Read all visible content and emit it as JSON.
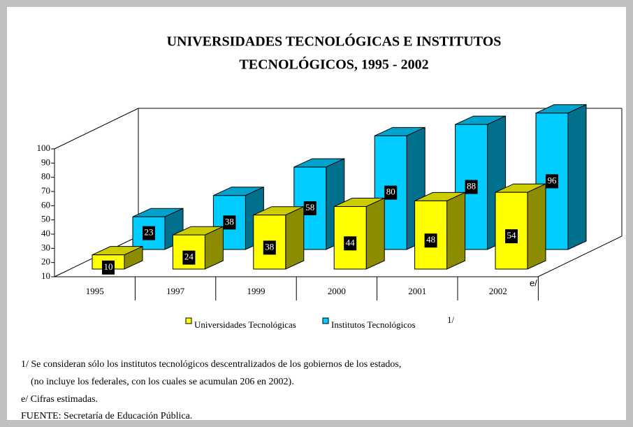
{
  "chart_data": {
    "type": "bar3d",
    "title": [
      "UNIVERSIDADES TECNOLÓGICAS E INSTITUTOS",
      "TECNOLÓGICOS, 1995 - 2002"
    ],
    "categories": [
      "1995",
      "1997",
      "1999",
      "2000",
      "2001",
      "2002"
    ],
    "series": [
      {
        "name": "Universidades Tecnológicas",
        "color": "#ffff00",
        "values": [
          10,
          24,
          38,
          44,
          48,
          54
        ]
      },
      {
        "name": "Institutos Tecnológicos",
        "color": "#00ccff",
        "values": [
          23,
          38,
          58,
          80,
          88,
          96
        ]
      }
    ],
    "legend_note": "1/",
    "x_axis_note": "e/",
    "ylim": [
      10,
      100
    ],
    "yticks": [
      10,
      20,
      30,
      40,
      50,
      60,
      70,
      80,
      90,
      100
    ],
    "footnotes": [
      "1/ Se consideran sólo los institutos tecnológicos descentralizados de los gobiernos de los estados,",
      "(no incluye los federales, con los cuales se acumulan 206 en 2002).",
      "e/ Cifras estimadas.",
      "FUENTE: Secretaría de Educación Pública."
    ]
  }
}
